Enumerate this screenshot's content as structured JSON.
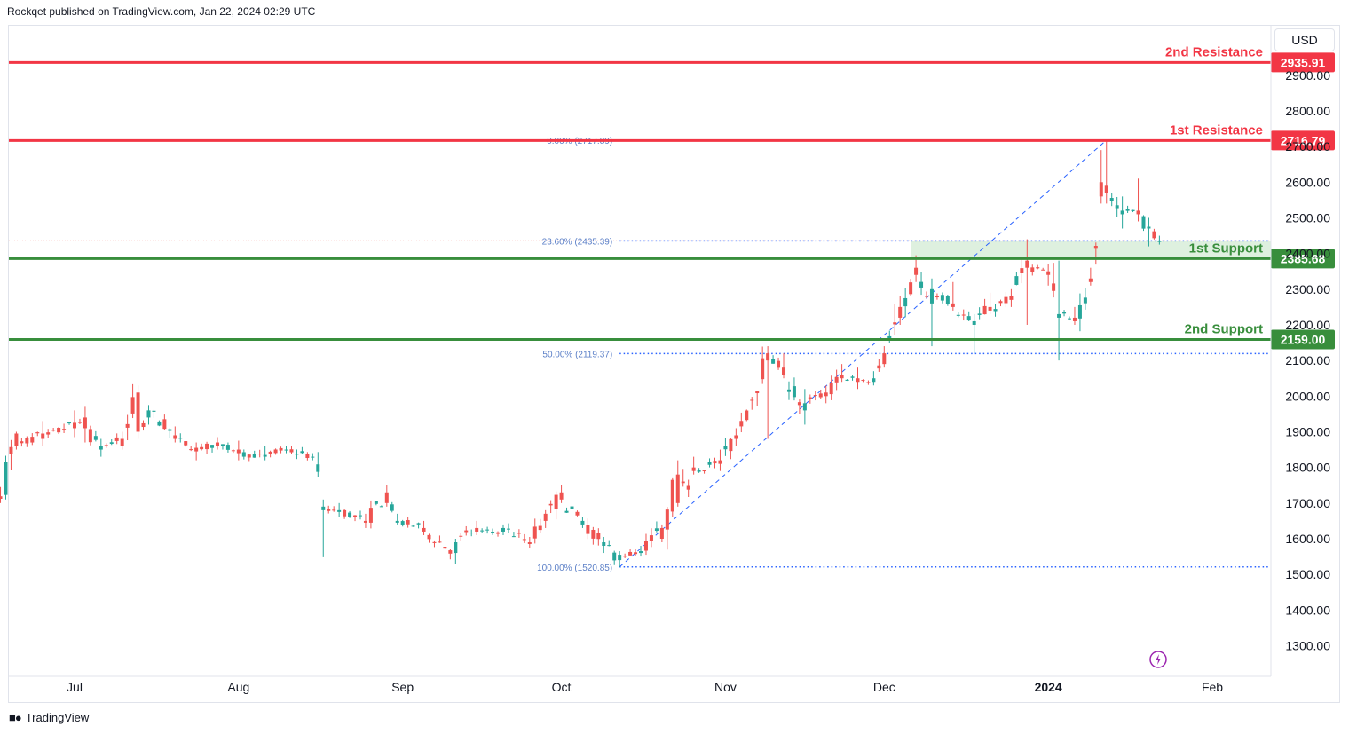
{
  "header": {
    "publisher_line": "Rockqet published on TradingView.com, Jan 22, 2024 02:29 UTC"
  },
  "currency_label": "USD",
  "footer": {
    "brand_name": "TradingView",
    "brand_icon": "tradingview-logo-icon"
  },
  "colors": {
    "up": "#26a69a",
    "down": "#ef5350",
    "resistance": "#f23645",
    "support": "#388e3c",
    "fib": "#2962ff",
    "fib_text": "#5b7fc7",
    "zone_fill": "#c8e6c9",
    "axis_text": "#131722",
    "lightning": "#9c27b0"
  },
  "chart_data": {
    "type": "candlestick",
    "y_axis": {
      "min": 1220,
      "max": 2990,
      "ticks": [
        1300,
        1400,
        1500,
        1600,
        1700,
        1800,
        1900,
        2000,
        2100,
        2200,
        2300,
        2400,
        2500,
        2600,
        2700,
        2800,
        2900
      ],
      "tick_format": "2 decimals"
    },
    "x_axis": {
      "range": [
        "2023-06-17",
        "2024-02-19"
      ],
      "ticks": [
        {
          "label": "Jul",
          "date": "2023-07-01",
          "bold": false
        },
        {
          "label": "Aug",
          "date": "2023-08-01",
          "bold": false
        },
        {
          "label": "Sep",
          "date": "2023-09-01",
          "bold": false
        },
        {
          "label": "Oct",
          "date": "2023-10-01",
          "bold": false
        },
        {
          "label": "Nov",
          "date": "2023-11-01",
          "bold": false
        },
        {
          "label": "Dec",
          "date": "2023-12-01",
          "bold": false
        },
        {
          "label": "2024",
          "date": "2024-01-01",
          "bold": true
        },
        {
          "label": "Feb",
          "date": "2024-02-01",
          "bold": false
        }
      ]
    },
    "levels": [
      {
        "name": "2nd Resistance",
        "value": 2935.91,
        "label": "2935.91",
        "kind": "resistance"
      },
      {
        "name": "1st Resistance",
        "value": 2716.79,
        "label": "2716.79",
        "kind": "resistance"
      },
      {
        "name": "1st Support",
        "value": 2385.68,
        "label": "2385.68",
        "kind": "support"
      },
      {
        "name": "2nd Support",
        "value": 2159.0,
        "label": "2159.00",
        "kind": "support"
      }
    ],
    "support_zone": {
      "from": 2385.68,
      "to": 2435.39,
      "start_date": "2023-12-06"
    },
    "fibonacci": {
      "from": {
        "date": "2023-10-12",
        "price": 1520.85
      },
      "to": {
        "date": "2024-01-12",
        "price": 2717.89
      },
      "levels": [
        {
          "label": "0.00% (2717.89)",
          "value": 2717.89,
          "style": "solid"
        },
        {
          "label": "23.60% (2435.39)",
          "value": 2435.39,
          "style": "dotted"
        },
        {
          "label": "50.00% (2119.37)",
          "value": 2119.37,
          "style": "dotted"
        },
        {
          "label": "100.00% (1520.85)",
          "value": 1520.85,
          "style": "dotted"
        }
      ]
    },
    "last_price": 2435.39,
    "anchors": [
      [
        "2023-06-17",
        1719,
        1712,
        1745,
        1700
      ],
      [
        "2023-06-20",
        1895,
        1860,
        1900,
        1850
      ],
      [
        "2023-06-25",
        1895,
        1880,
        1930,
        1860
      ],
      [
        "2023-07-01",
        1925,
        1910,
        1960,
        1885
      ],
      [
        "2023-07-03",
        1940,
        1910,
        1970,
        1870
      ],
      [
        "2023-07-06",
        1850,
        1860,
        1880,
        1830
      ],
      [
        "2023-07-10",
        1880,
        1860,
        1900,
        1850
      ],
      [
        "2023-07-13",
        2010,
        1900,
        2030,
        1880
      ],
      [
        "2023-07-15",
        1940,
        1960,
        1975,
        1920
      ],
      [
        "2023-07-20",
        1890,
        1880,
        1915,
        1870
      ],
      [
        "2023-07-24",
        1855,
        1845,
        1870,
        1820
      ],
      [
        "2023-07-28",
        1870,
        1860,
        1885,
        1850
      ],
      [
        "2023-08-01",
        1850,
        1840,
        1875,
        1820
      ],
      [
        "2023-08-06",
        1830,
        1835,
        1860,
        1820
      ],
      [
        "2023-08-10",
        1850,
        1850,
        1860,
        1840
      ],
      [
        "2023-08-15",
        1830,
        1830,
        1840,
        1820
      ],
      [
        "2023-08-17",
        1680,
        1690,
        1710,
        1548
      ],
      [
        "2023-08-20",
        1675,
        1680,
        1700,
        1660
      ],
      [
        "2023-08-25",
        1650,
        1645,
        1670,
        1630
      ],
      [
        "2023-08-29",
        1730,
        1700,
        1750,
        1690
      ],
      [
        "2023-08-31",
        1645,
        1650,
        1670,
        1640
      ],
      [
        "2023-09-05",
        1630,
        1620,
        1650,
        1610
      ],
      [
        "2023-09-11",
        1560,
        1590,
        1600,
        1530
      ],
      [
        "2023-09-15",
        1630,
        1620,
        1650,
        1610
      ],
      [
        "2023-09-20",
        1620,
        1630,
        1640,
        1610
      ],
      [
        "2023-09-25",
        1590,
        1585,
        1605,
        1575
      ],
      [
        "2023-09-28",
        1670,
        1650,
        1680,
        1630
      ],
      [
        "2023-10-01",
        1730,
        1710,
        1750,
        1700
      ],
      [
        "2023-10-05",
        1640,
        1650,
        1660,
        1630
      ],
      [
        "2023-10-09",
        1580,
        1590,
        1605,
        1560
      ],
      [
        "2023-10-12",
        1540,
        1555,
        1565,
        1520
      ],
      [
        "2023-10-16",
        1560,
        1565,
        1580,
        1550
      ],
      [
        "2023-10-20",
        1630,
        1600,
        1640,
        1590
      ],
      [
        "2023-10-23",
        1780,
        1700,
        1820,
        1690
      ],
      [
        "2023-10-26",
        1800,
        1790,
        1830,
        1780
      ],
      [
        "2023-10-31",
        1820,
        1810,
        1850,
        1790
      ],
      [
        "2023-11-03",
        1890,
        1880,
        1910,
        1860
      ],
      [
        "2023-11-09",
        2120,
        2100,
        2140,
        1880
      ],
      [
        "2023-11-12",
        2080,
        2060,
        2120,
        2050
      ],
      [
        "2023-11-16",
        1960,
        1980,
        2020,
        1920
      ],
      [
        "2023-11-20",
        2010,
        2000,
        2030,
        1980
      ],
      [
        "2023-11-23",
        2060,
        2050,
        2090,
        2040
      ],
      [
        "2023-11-26",
        2050,
        2040,
        2080,
        2020
      ],
      [
        "2023-11-29",
        2040,
        2050,
        2070,
        2030
      ],
      [
        "2023-12-01",
        2120,
        2090,
        2140,
        2080
      ],
      [
        "2023-12-04",
        2250,
        2220,
        2280,
        2200
      ],
      [
        "2023-12-07",
        2360,
        2340,
        2395,
        2320
      ],
      [
        "2023-12-10",
        2260,
        2300,
        2330,
        2140
      ],
      [
        "2023-12-14",
        2260,
        2250,
        2320,
        2240
      ],
      [
        "2023-12-18",
        2200,
        2210,
        2230,
        2120
      ],
      [
        "2023-12-21",
        2250,
        2240,
        2290,
        2230
      ],
      [
        "2023-12-25",
        2280,
        2270,
        2300,
        2250
      ],
      [
        "2023-12-28",
        2380,
        2360,
        2440,
        2200
      ],
      [
        "2024-01-01",
        2350,
        2340,
        2370,
        2310
      ],
      [
        "2024-01-03",
        2220,
        2230,
        2380,
        2100
      ],
      [
        "2024-01-06",
        2220,
        2210,
        2250,
        2200
      ],
      [
        "2024-01-09",
        2330,
        2320,
        2360,
        2310
      ],
      [
        "2024-01-11",
        2600,
        2560,
        2690,
        2540
      ],
      [
        "2024-01-12",
        2590,
        2570,
        2717,
        2540
      ],
      [
        "2024-01-15",
        2510,
        2520,
        2560,
        2470
      ],
      [
        "2024-01-18",
        2520,
        2510,
        2610,
        2490
      ],
      [
        "2024-01-20",
        2470,
        2475,
        2500,
        2420
      ],
      [
        "2024-01-22",
        2435,
        2435,
        2450,
        2425
      ]
    ]
  }
}
